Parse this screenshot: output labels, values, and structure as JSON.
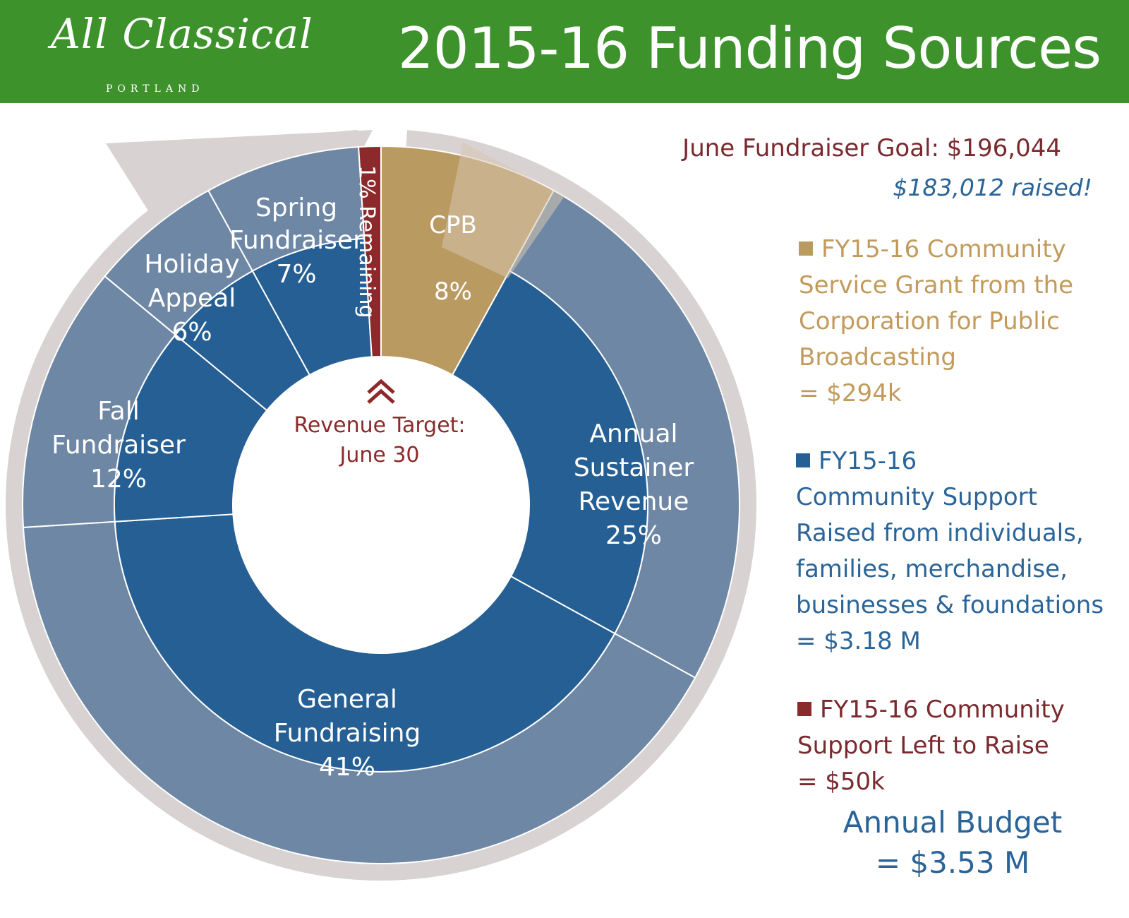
{
  "header": {
    "logo_script": "All Classical",
    "logo_sub": "PORTLAND",
    "title": "2015-16 Funding Sources"
  },
  "colors": {
    "header_green": "#3d922c",
    "outer_blue": "#6e87a4",
    "inner_blue": "#255f93",
    "cpb_gold": "#b99a61",
    "remaining_red": "#8c2a2b",
    "arrow_gray": "#d8d2d2"
  },
  "chart_data": {
    "type": "donut",
    "title": "2015-16 Funding Sources",
    "center_label": [
      "Revenue Target:",
      "June 30"
    ],
    "segments": [
      {
        "label": "CPB",
        "percent_label": "8%",
        "value": 8
      },
      {
        "label": "Annual Sustainer Revenue",
        "percent_label": "25%",
        "value": 25
      },
      {
        "label": "General Fundraising",
        "percent_label": "41%",
        "value": 41
      },
      {
        "label": "Fall Fundraiser",
        "percent_label": "12%",
        "value": 12
      },
      {
        "label": "Holiday Appeal",
        "percent_label": "6%",
        "value": 6
      },
      {
        "label": "Spring Fundraiser",
        "percent_label": "7%",
        "value": 7
      },
      {
        "label": "1% Remaining",
        "percent_label": "1%",
        "value": 1
      }
    ],
    "progress_to_goal_fraction": 0.99
  },
  "side": {
    "goal": "June Fundraiser Goal: $196,044",
    "raised": "$183,012 raised!",
    "legend": [
      {
        "text": "FY15-16 Community\nService Grant from the\nCorporation for Public\nBroadcasting\n= $294k"
      },
      {
        "text": "FY15-16\nCommunity Support\nRaised from individuals,\nfamilies, merchandise,\nbusinesses & foundations\n= $3.18 M"
      },
      {
        "text": "FY15-16 Community\nSupport Left to Raise\n= $50k"
      }
    ],
    "budget": "Annual Budget\n= $3.53 M"
  }
}
